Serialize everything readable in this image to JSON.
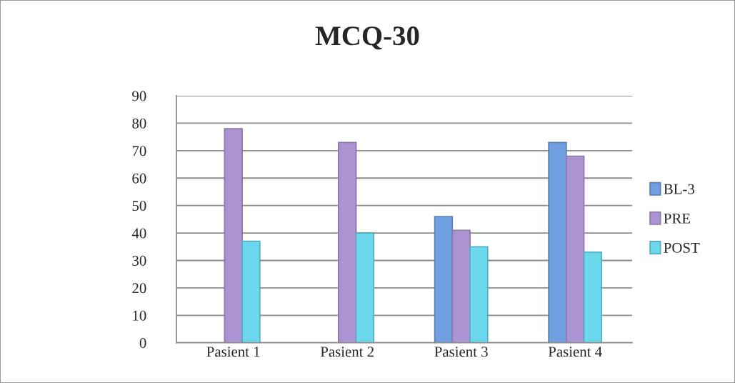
{
  "chart_data": {
    "type": "bar",
    "title": "MCQ-30",
    "categories": [
      "Pasient 1",
      "Pasient 2",
      "Pasient 3",
      "Pasient 4"
    ],
    "series": [
      {
        "name": "BL-3",
        "color": "#6f9fe0",
        "values": [
          null,
          null,
          46,
          73
        ]
      },
      {
        "name": "PRE",
        "color": "#ac94d2",
        "values": [
          78,
          73,
          41,
          68
        ]
      },
      {
        "name": "POST",
        "color": "#6cd8ee",
        "values": [
          37,
          40,
          35,
          33
        ]
      }
    ],
    "ylim": [
      0,
      90
    ],
    "yticks": [
      0,
      10,
      20,
      30,
      40,
      50,
      60,
      70,
      80,
      90
    ],
    "grid": "y",
    "legend": "right"
  }
}
